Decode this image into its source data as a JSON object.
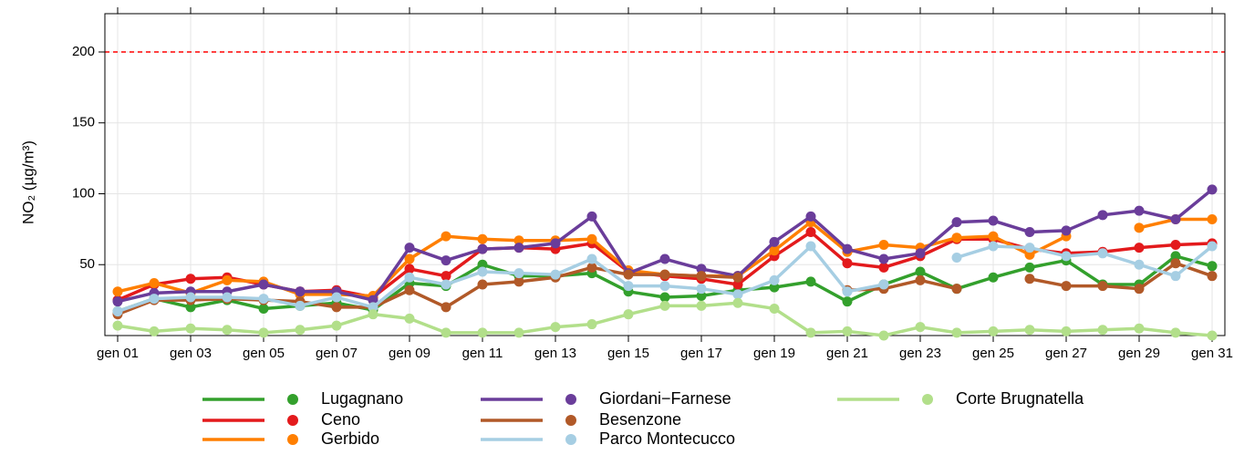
{
  "chart_data": {
    "type": "line",
    "y_label": "NO₂ (µg/m³)",
    "categories": [
      "gen 01",
      null,
      "gen 03",
      null,
      "gen 05",
      null,
      "gen 07",
      null,
      "gen 09",
      null,
      "gen 11",
      null,
      "gen 13",
      null,
      "gen 15",
      null,
      "gen 17",
      null,
      "gen 19",
      null,
      "gen 21",
      null,
      "gen 23",
      null,
      "gen 25",
      null,
      "gen 27",
      null,
      "gen 29",
      null,
      "gen 31"
    ],
    "series": [
      {
        "name": "Lugagnano",
        "color": "#33a02c",
        "values": [
          17,
          26,
          20,
          25,
          19,
          21,
          23,
          18,
          37,
          35,
          50,
          42,
          42,
          44,
          31,
          27,
          28,
          32,
          34,
          38,
          24,
          36,
          45,
          33,
          41,
          48,
          53,
          36,
          36,
          56,
          49
        ]
      },
      {
        "name": "Ceno",
        "color": "#e31a1c",
        "values": [
          25,
          36,
          40,
          41,
          36,
          31,
          32,
          27,
          47,
          42,
          61,
          62,
          61,
          65,
          45,
          42,
          40,
          36,
          56,
          73,
          51,
          48,
          56,
          68,
          68,
          61,
          58,
          59,
          62,
          64,
          65
        ]
      },
      {
        "name": "Gerbido",
        "color": "#ff7f00",
        "values": [
          31,
          37,
          30,
          39,
          38,
          29,
          29,
          28,
          54,
          70,
          68,
          67,
          67,
          68,
          46,
          43,
          42,
          42,
          60,
          80,
          59,
          64,
          62,
          69,
          70,
          57,
          70,
          null,
          76,
          82,
          82
        ]
      },
      {
        "name": "Giordani−Farnese",
        "color": "#6a3d9a",
        "values": [
          24,
          30,
          31,
          31,
          36,
          31,
          31,
          25,
          62,
          53,
          61,
          62,
          65,
          84,
          44,
          54,
          47,
          42,
          66,
          84,
          61,
          54,
          58,
          80,
          81,
          73,
          74,
          85,
          88,
          82,
          103
        ]
      },
      {
        "name": "Besenzone",
        "color": "#b15928",
        "values": [
          15,
          25,
          25,
          26,
          25,
          24,
          20,
          20,
          32,
          20,
          36,
          38,
          41,
          48,
          43,
          43,
          42,
          41,
          null,
          null,
          32,
          33,
          39,
          33,
          null,
          40,
          35,
          35,
          33,
          51,
          42
        ]
      },
      {
        "name": "Parco Montecucco",
        "color": "#a6cee3",
        "values": [
          17,
          26,
          27,
          27,
          26,
          21,
          27,
          20,
          41,
          36,
          45,
          44,
          43,
          54,
          35,
          35,
          33,
          29,
          39,
          63,
          31,
          36,
          null,
          55,
          63,
          62,
          56,
          58,
          50,
          42,
          63
        ]
      },
      {
        "name": "Corte Brugnatella",
        "color": "#b2df8a",
        "values": [
          7,
          3,
          5,
          4,
          2,
          4,
          7,
          15,
          12,
          2,
          2,
          2,
          6,
          8,
          15,
          21,
          21,
          23,
          19,
          2,
          3,
          0,
          6,
          2,
          3,
          4,
          3,
          4,
          5,
          2,
          0
        ]
      }
    ],
    "ylim": [
      0,
      227
    ],
    "yticks": [
      50,
      100,
      150,
      200
    ],
    "grid": true,
    "reference_line": {
      "value": 200,
      "color": "#ff0000"
    }
  }
}
